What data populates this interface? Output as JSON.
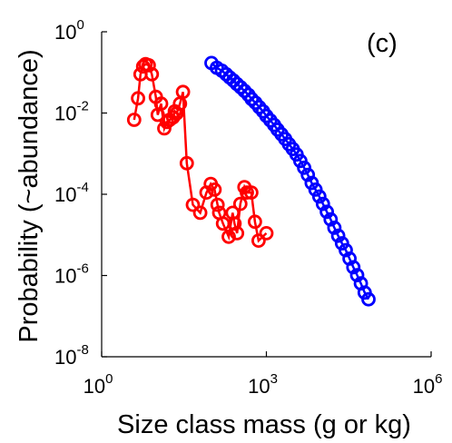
{
  "chart_data": {
    "type": "scatter",
    "panel_label": "(c)",
    "xlabel": "Size class mass (g or kg)",
    "ylabel": "Probability (~abundance)",
    "x_scale": "log",
    "y_scale": "log",
    "xlim": [
      1,
      1000000
    ],
    "ylim": [
      1e-08,
      1
    ],
    "grid": false,
    "legend": "none",
    "x_ticks": [
      {
        "value": 1,
        "base": "10",
        "exp": "0"
      },
      {
        "value": 1000,
        "base": "10",
        "exp": "3"
      },
      {
        "value": 1000000,
        "base": "10",
        "exp": "6"
      }
    ],
    "y_ticks": [
      {
        "value": 1,
        "base": "10",
        "exp": "0"
      },
      {
        "value": 0.01,
        "base": "10",
        "exp": "-2"
      },
      {
        "value": 0.0001,
        "base": "10",
        "exp": "-4"
      },
      {
        "value": 1e-06,
        "base": "10",
        "exp": "-6"
      },
      {
        "value": 1e-08,
        "base": "10",
        "exp": "-8"
      }
    ],
    "series": [
      {
        "color": "#ff0000",
        "marker": "open-circle",
        "line": true,
        "points": [
          [
            3.9,
            0.0068
          ],
          [
            4.6,
            0.023
          ],
          [
            5.1,
            0.09
          ],
          [
            5.7,
            0.14
          ],
          [
            6.3,
            0.16
          ],
          [
            7.2,
            0.15
          ],
          [
            8.2,
            0.09
          ],
          [
            9.7,
            0.025
          ],
          [
            10.5,
            0.009
          ],
          [
            12.1,
            0.017
          ],
          [
            13.8,
            0.0042
          ],
          [
            15.4,
            0.006
          ],
          [
            17.3,
            0.0068
          ],
          [
            20,
            0.0078
          ],
          [
            21.5,
            0.011
          ],
          [
            23.2,
            0.0098
          ],
          [
            26.7,
            0.017
          ],
          [
            30.3,
            0.033
          ],
          [
            35.5,
            0.00058
          ],
          [
            45.9,
            5.5e-05
          ],
          [
            62.4,
            3.5e-05
          ],
          [
            81,
            0.00011
          ],
          [
            97,
            0.00018
          ],
          [
            114,
            0.00013
          ],
          [
            129,
            5.5e-05
          ],
          [
            138,
            3.5e-05
          ],
          [
            162,
            1.9e-05
          ],
          [
            206,
            9e-06
          ],
          [
            243,
            3.5e-05
          ],
          [
            263,
            1.9e-05
          ],
          [
            292,
            1.1e-05
          ],
          [
            335,
            5.8e-05
          ],
          [
            398,
            0.00015
          ],
          [
            441,
            0.00011
          ],
          [
            531,
            0.00011
          ],
          [
            618,
            2.1e-05
          ],
          [
            721,
            7.2e-06
          ],
          [
            1000,
            1.1e-05
          ]
        ]
      },
      {
        "color": "#0000ff",
        "marker": "open-circle",
        "line": true,
        "points": [
          [
            100,
            0.17
          ],
          [
            125,
            0.13
          ],
          [
            155,
            0.11
          ],
          [
            185,
            0.09
          ],
          [
            215,
            0.075
          ],
          [
            250,
            0.063
          ],
          [
            290,
            0.052
          ],
          [
            340,
            0.043
          ],
          [
            400,
            0.035
          ],
          [
            470,
            0.028
          ],
          [
            540,
            0.022
          ],
          [
            630,
            0.018
          ],
          [
            740,
            0.014
          ],
          [
            870,
            0.011
          ],
          [
            1000,
            0.0085
          ],
          [
            1180,
            0.0066
          ],
          [
            1380,
            0.0051
          ],
          [
            1600,
            0.0039
          ],
          [
            1880,
            0.003
          ],
          [
            2200,
            0.0023
          ],
          [
            2580,
            0.0017
          ],
          [
            3030,
            0.0013
          ],
          [
            3550,
            0.00095
          ],
          [
            4150,
            0.00066
          ],
          [
            4870,
            0.00045
          ],
          [
            5700,
            0.0003
          ],
          [
            6680,
            0.00019
          ],
          [
            7830,
            0.00013
          ],
          [
            9200,
            8.8e-05
          ],
          [
            10700,
            5.8e-05
          ],
          [
            12600,
            3.7e-05
          ],
          [
            14800,
            2.4e-05
          ],
          [
            17300,
            1.5e-05
          ],
          [
            20300,
            9.5e-06
          ],
          [
            23800,
            6.2e-06
          ],
          [
            27900,
            4.2e-06
          ],
          [
            32700,
            2.6e-06
          ],
          [
            38300,
            1.6e-06
          ],
          [
            44900,
            1.02e-06
          ],
          [
            52600,
            6.4e-07
          ],
          [
            61700,
            3.8e-07
          ],
          [
            72300,
            2.6e-07
          ]
        ]
      }
    ]
  }
}
